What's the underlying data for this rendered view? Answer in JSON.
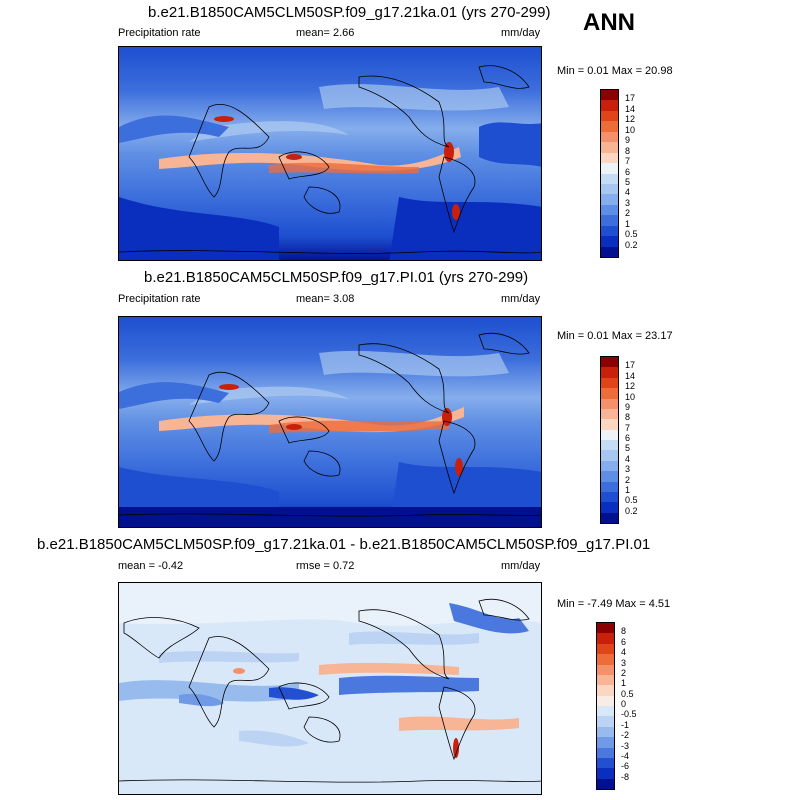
{
  "season": "ANN",
  "panels": [
    {
      "id": "top",
      "title": "b.e21.B1850CAM5CLM50SP.f09_g17.21ka.01 (yrs 270-299)",
      "left_label": "Precipitation rate",
      "mean_label": "mean=   2.66",
      "rmse_label": "",
      "units": "mm/day",
      "minmax": "Min =   0.01 Max =  20.98",
      "levels": [
        "17",
        "14",
        "12",
        "10",
        "9",
        "8",
        "7",
        "6",
        "5",
        "4",
        "3",
        "2",
        "1",
        "0.5",
        "0.2"
      ],
      "colors": [
        "#8b0000",
        "#c8200a",
        "#e0451a",
        "#ee6b3a",
        "#f4916a",
        "#f8b595",
        "#fbd6c0",
        "#eef3f8",
        "#c6dcf4",
        "#a7c6f0",
        "#86aeec",
        "#5f8fe4",
        "#3c6edc",
        "#1d4fd0",
        "#0a2fbf",
        "#00108f"
      ]
    },
    {
      "id": "middle",
      "title": "b.e21.B1850CAM5CLM50SP.f09_g17.PI.01 (yrs 270-299)",
      "left_label": "Precipitation rate",
      "mean_label": "mean=   3.08",
      "rmse_label": "",
      "units": "mm/day",
      "minmax": "Min =   0.01 Max =  23.17",
      "levels": [
        "17",
        "14",
        "12",
        "10",
        "9",
        "8",
        "7",
        "6",
        "5",
        "4",
        "3",
        "2",
        "1",
        "0.5",
        "0.2"
      ],
      "colors": [
        "#8b0000",
        "#c8200a",
        "#e0451a",
        "#ee6b3a",
        "#f4916a",
        "#f8b595",
        "#fbd6c0",
        "#eef3f8",
        "#c6dcf4",
        "#a7c6f0",
        "#86aeec",
        "#5f8fe4",
        "#3c6edc",
        "#1d4fd0",
        "#0a2fbf",
        "#00108f"
      ]
    },
    {
      "id": "diff",
      "title": "b.e21.B1850CAM5CLM50SP.f09_g17.21ka.01 - b.e21.B1850CAM5CLM50SP.f09_g17.PI.01",
      "left_label": "mean =   -0.42",
      "mean_label": "rmse =   0.72",
      "rmse_label": "",
      "units": "mm/day",
      "minmax": "Min =  -7.49 Max =   4.51",
      "levels": [
        "8",
        "6",
        "4",
        "3",
        "2",
        "1",
        "0.5",
        "0",
        "-0.5",
        "-1",
        "-2",
        "-3",
        "-4",
        "-6",
        "-8"
      ],
      "colors": [
        "#8b0000",
        "#c8200a",
        "#e0451a",
        "#ee6b3a",
        "#f4916a",
        "#f8b595",
        "#fbd6c0",
        "#f7ece6",
        "#d9e8f8",
        "#bcd3f3",
        "#98bbee",
        "#7099e6",
        "#4a78de",
        "#2350d1",
        "#0a2fbf",
        "#00108f"
      ]
    }
  ]
}
